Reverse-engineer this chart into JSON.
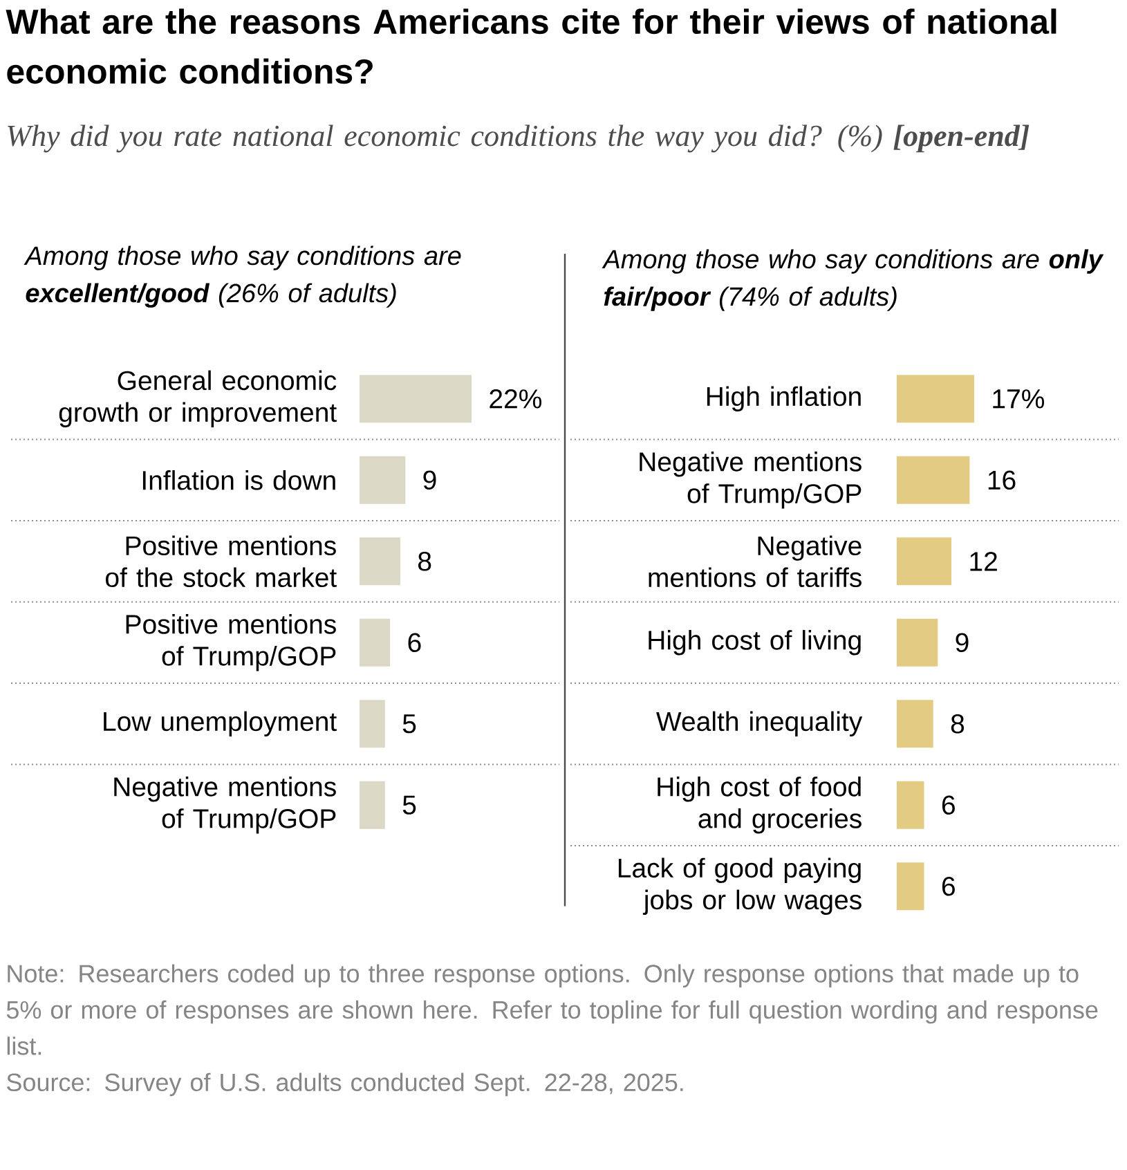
{
  "chart_data": [
    {
      "type": "other",
      "title": "What are the reasons Americans cite for their views of national economic conditions?",
      "subtitle": "Why did you rate national economic conditions the way you did? (%) **[open-end]**",
      "annotations": [
        "Note: Researchers coded up to three response options. Only response options that made up to 5% or more of responses are shown here. Refer to topline for full question wording and response list.",
        "Source: Survey of U.S. adults conducted Sept. 22-28, 2025."
      ]
    },
    {
      "type": "bar",
      "orientation": "horizontal",
      "title": "Among those who say conditions are **excellent/good** (26% of adults)",
      "categories": [
        "General economic growth or improvement",
        "Inflation is down",
        "Positive mentions of the stock market",
        "Positive mentions of Trump/GOP",
        "Low unemployment",
        "Negative mentions of Trump/GOP"
      ],
      "values": [
        22,
        9,
        8,
        6,
        5,
        5
      ],
      "value_labels": [
        "22%",
        "9",
        "8",
        "6",
        "5",
        "5"
      ],
      "color": "#dcd8c6"
    },
    {
      "type": "bar",
      "orientation": "horizontal",
      "title": "Among those who say conditions are **only fair/poor** (74% of adults)",
      "categories": [
        "High inflation",
        "Negative mentions of Trump/GOP",
        "Negative mentions of tariffs",
        "High cost of living",
        "Wealth inequality",
        "High cost of food and groceries",
        "Lack of good paying jobs or low wages"
      ],
      "values": [
        17,
        16,
        12,
        9,
        8,
        6,
        6
      ],
      "value_labels": [
        "17%",
        "16",
        "12",
        "9",
        "8",
        "6",
        "6"
      ],
      "color": "#e3cb84"
    }
  ]
}
